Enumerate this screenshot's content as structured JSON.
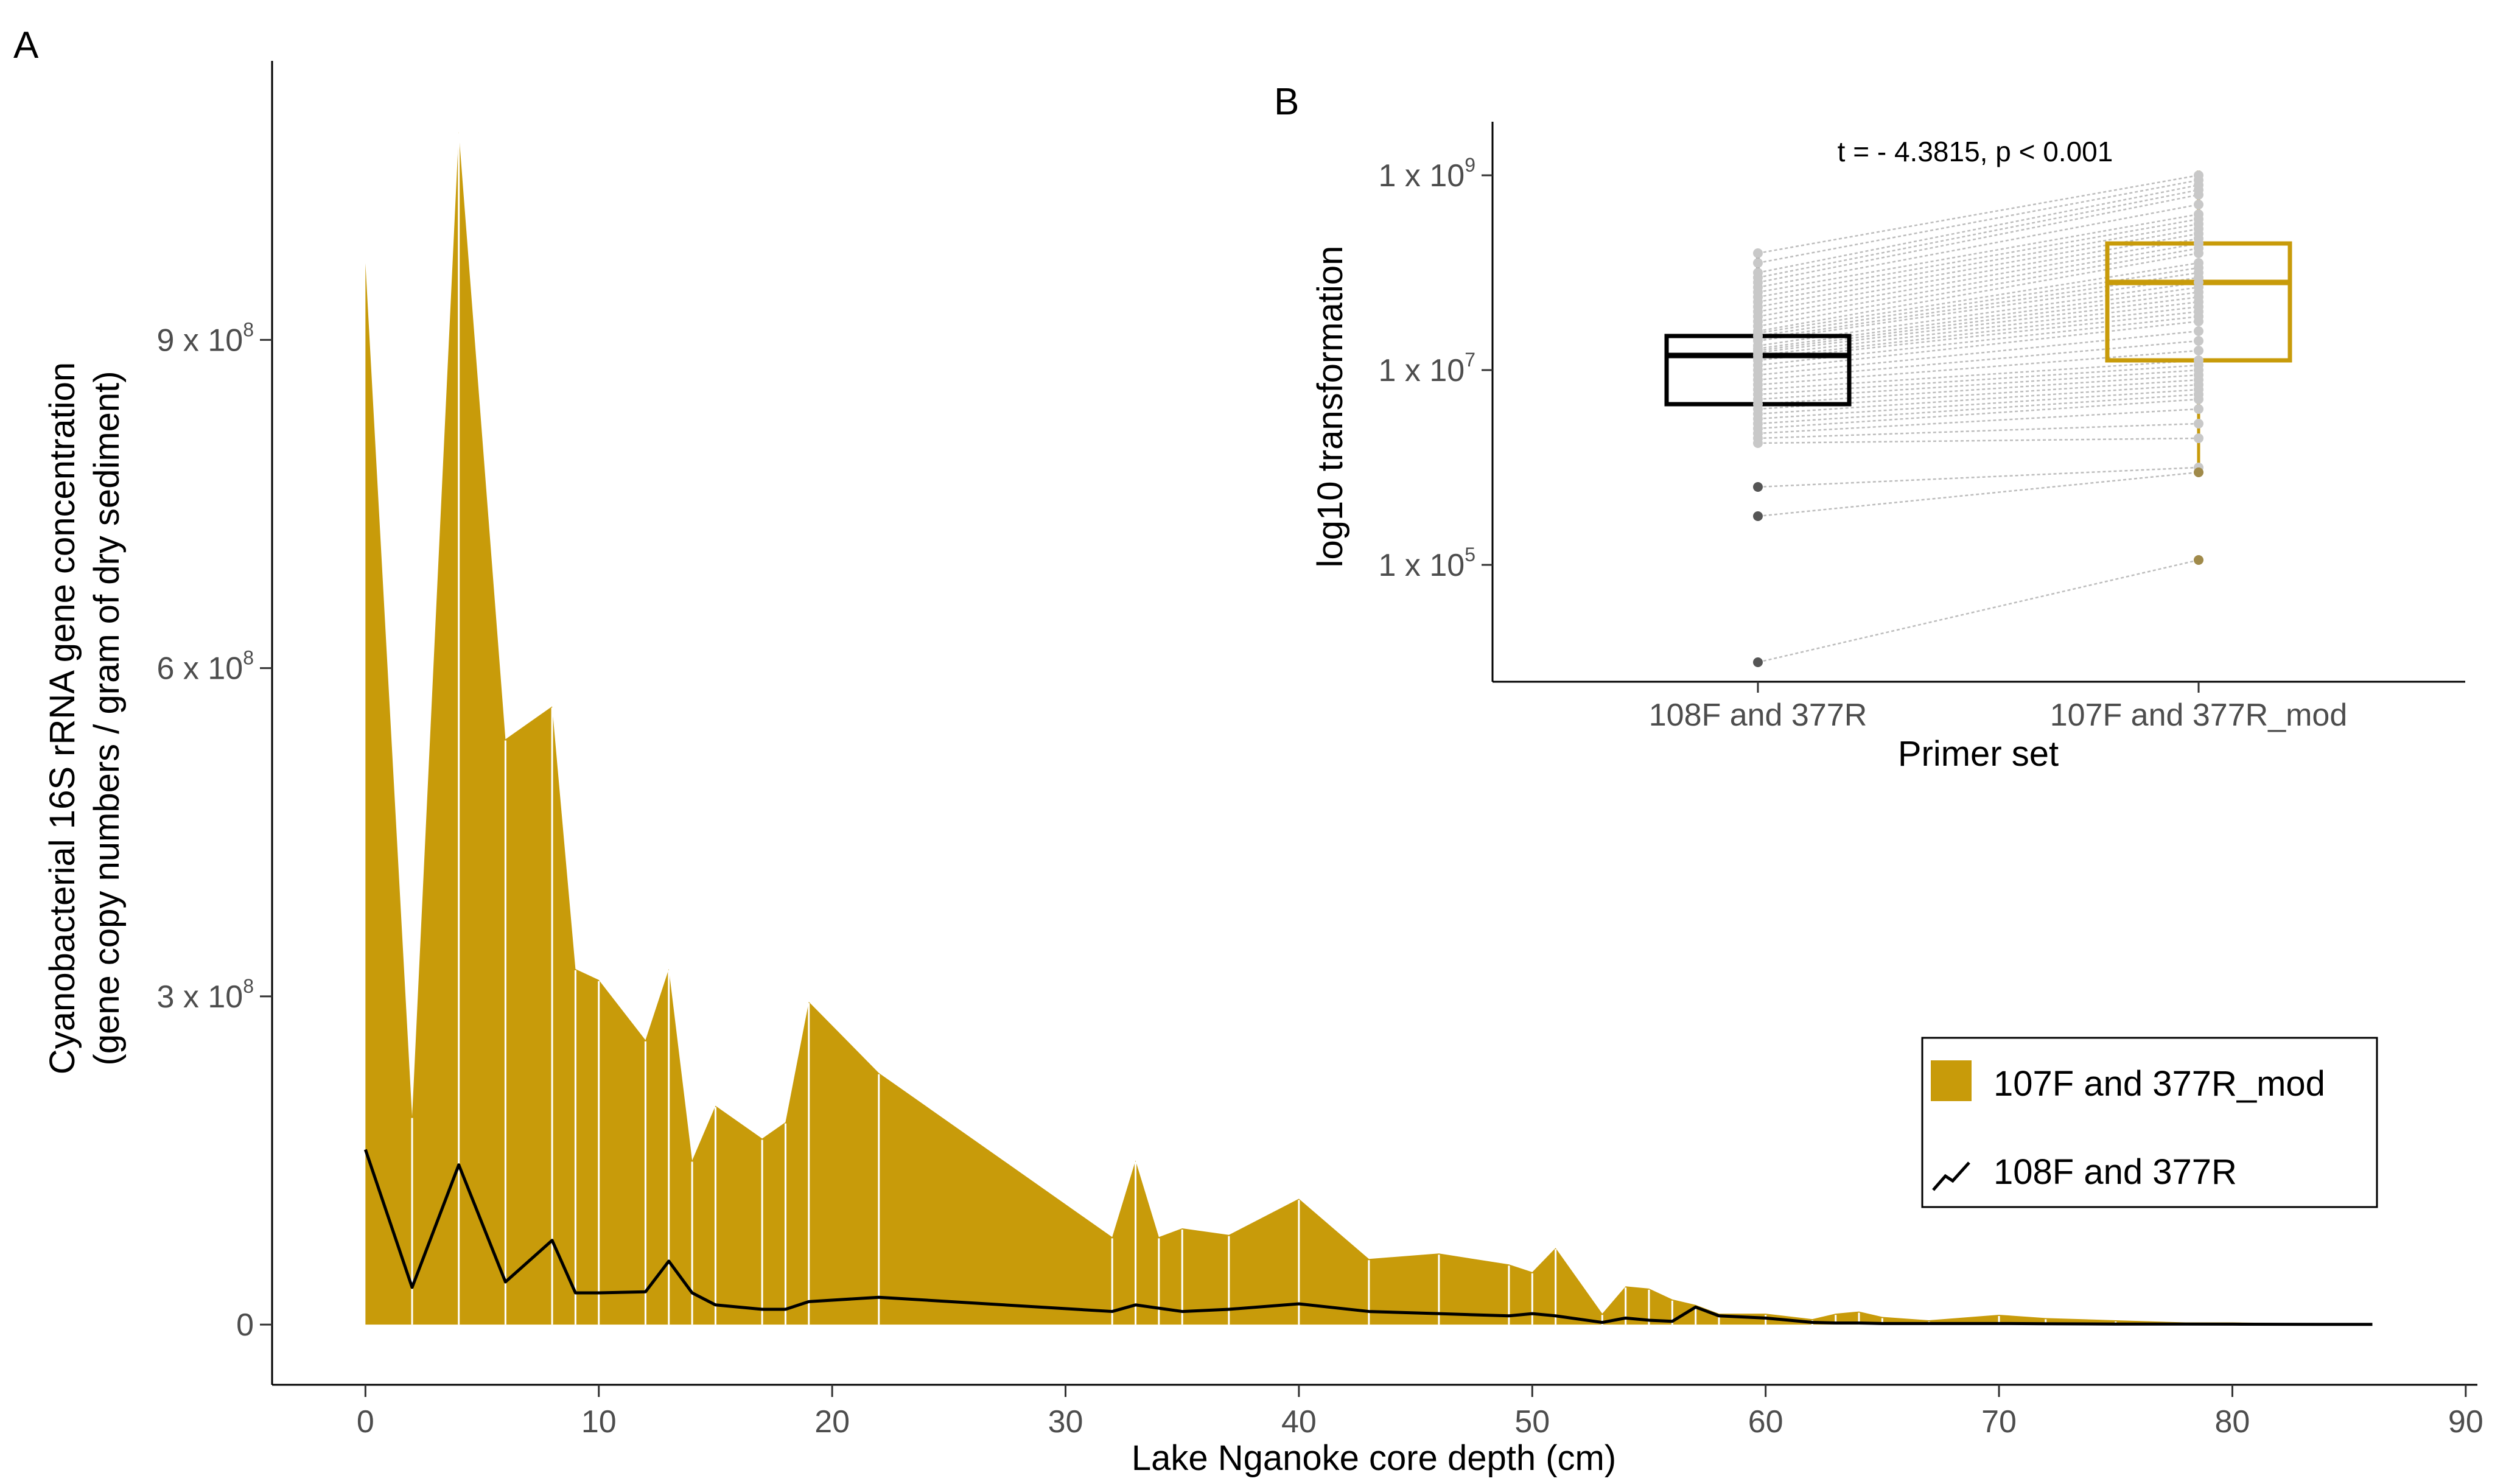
{
  "figure": {
    "panel_a_label": "A",
    "panel_b_label": "B"
  },
  "colors": {
    "gold": "#C89B0A",
    "black": "#000000",
    "tick_text": "#4d4d4d",
    "pair_line": "#bdbdbd",
    "point_gray": "#c8c8c8",
    "point_dark": "#555555"
  },
  "chart_data": [
    {
      "panel": "A",
      "type": "area",
      "title": "",
      "xlabel": "Lake Nganoke core depth (cm)",
      "ylabel_line1": "Cyanobacterial 16S rRNA gene concentration",
      "ylabel_line2": "(gene copy numbers / gram of dry sediment)",
      "xlim": [
        -4,
        90.5
      ],
      "ylim": [
        -55000000.0,
        1155000000.0
      ],
      "x_ticks": [
        0,
        10,
        20,
        30,
        40,
        50,
        60,
        70,
        80,
        90
      ],
      "x_tick_labels": [
        "0",
        "10",
        "20",
        "30",
        "40",
        "50",
        "60",
        "70",
        "80",
        "90"
      ],
      "y_ticks": [
        {
          "value": 0,
          "mant": "0",
          "exp": ""
        },
        {
          "value": 300000000.0,
          "mant": "3 x 10",
          "exp": "8"
        },
        {
          "value": 600000000.0,
          "mant": "6 x 10",
          "exp": "8"
        },
        {
          "value": 900000000.0,
          "mant": "9 x 10",
          "exp": "8"
        }
      ],
      "legend": {
        "position": "right",
        "entries": [
          {
            "label": "107F and 377R_mod",
            "kind": "fill"
          },
          {
            "label": "108F and 377R",
            "kind": "line"
          }
        ]
      },
      "series": [
        {
          "name": "107F and 377R_mod",
          "style": "area",
          "x": [
            0,
            2,
            4,
            6,
            8,
            9,
            10,
            12,
            13,
            14,
            15,
            17,
            18,
            19,
            22,
            32,
            33,
            34,
            35,
            37,
            40,
            43,
            46,
            49,
            50,
            51,
            53,
            54,
            55,
            56,
            57,
            58,
            60,
            62,
            63,
            64,
            65,
            67,
            70,
            72,
            75,
            78,
            80,
            82,
            84,
            86
          ],
          "y": [
            970000000.0,
            190000000.0,
            1090000000.0,
            535000000.0,
            565000000.0,
            325000000.0,
            315000000.0,
            260000000.0,
            325000000.0,
            150000000.0,
            200000000.0,
            170000000.0,
            185000000.0,
            295000000.0,
            230000000.0,
            80000000.0,
            150000000.0,
            80000000.0,
            88000000.0,
            82000000.0,
            115000000.0,
            60000000.0,
            65000000.0,
            55000000.0,
            48000000.0,
            70000000.0,
            10000000.0,
            35000000.0,
            33000000.0,
            23000000.0,
            18000000.0,
            10000000.0,
            10000000.0,
            5000000.0,
            10000000.0,
            12000000.0,
            7000000.0,
            4000000.0,
            9000000.0,
            6000000.0,
            4000000.0,
            2000000.0,
            2000000.0,
            1500000.0,
            1000000.0,
            1000000.0
          ]
        },
        {
          "name": "108F and 377R",
          "style": "line",
          "x": [
            0,
            2,
            4,
            6,
            8,
            9,
            10,
            12,
            13,
            14,
            15,
            17,
            18,
            19,
            22,
            32,
            33,
            34,
            35,
            37,
            40,
            43,
            46,
            49,
            50,
            51,
            53,
            54,
            55,
            56,
            57,
            58,
            60,
            62,
            63,
            64,
            65,
            67,
            70,
            72,
            75,
            78,
            80,
            82,
            84,
            86
          ],
          "y": [
            160000000.0,
            34000000.0,
            146000000.0,
            39000000.0,
            77000000.0,
            29000000.0,
            29000000.0,
            30000000.0,
            58000000.0,
            29000000.0,
            18000000.0,
            14000000.0,
            14000000.0,
            21000000.0,
            25000000.0,
            12000000.0,
            18000000.0,
            15000000.0,
            12000000.0,
            14000000.0,
            19000000.0,
            12000000.0,
            10000000.0,
            8000000.0,
            10000000.0,
            8000000.0,
            2000000.0,
            6000000.0,
            4000000.0,
            3000000.0,
            16000000.0,
            8000000.0,
            6000000.0,
            2000000.0,
            1500000.0,
            1500000.0,
            1000000.0,
            1000000.0,
            1000000.0,
            800000.0,
            500000.0,
            500000.0,
            400000.0,
            300000.0,
            200000.0,
            200000.0
          ]
        }
      ]
    },
    {
      "panel": "B",
      "type": "box",
      "title": "",
      "annotation": "t = - 4.3815, p < 0.001",
      "xlabel": "Primer set",
      "ylabel": "log10 transformation",
      "categories": [
        "108F and 377R",
        "107F and 377R_mod"
      ],
      "ylim_log10": [
        3.8,
        9.55
      ],
      "y_ticks": [
        {
          "log10": 5,
          "mant": "1 x 10",
          "exp": "5"
        },
        {
          "log10": 7,
          "mant": "1 x 10",
          "exp": "7"
        },
        {
          "log10": 9,
          "mant": "1 x 10",
          "exp": "9"
        }
      ],
      "boxes": [
        {
          "name": "108F and 377R",
          "q1_log10": 6.65,
          "median_log10": 7.15,
          "q3_log10": 7.35,
          "whisker_low_log10": 6.25,
          "whisker_high_log10": 8.2
        },
        {
          "name": "107F and 377R_mod",
          "q1_log10": 7.1,
          "median_log10": 7.9,
          "q3_log10": 8.3,
          "whisker_low_log10": 6.0,
          "whisker_high_log10": 9.05
        }
      ],
      "pairs_log10": [
        [
          8.2,
          9.0
        ],
        [
          8.1,
          8.95
        ],
        [
          8.0,
          8.9
        ],
        [
          7.95,
          8.85
        ],
        [
          7.9,
          8.8
        ],
        [
          7.85,
          8.7
        ],
        [
          7.8,
          8.6
        ],
        [
          7.75,
          8.55
        ],
        [
          7.7,
          8.5
        ],
        [
          7.65,
          8.45
        ],
        [
          7.6,
          8.4
        ],
        [
          7.55,
          8.35
        ],
        [
          7.5,
          8.3
        ],
        [
          7.45,
          8.25
        ],
        [
          7.4,
          8.2
        ],
        [
          7.38,
          8.1
        ],
        [
          7.35,
          8.05
        ],
        [
          7.32,
          8.0
        ],
        [
          7.3,
          7.95
        ],
        [
          7.25,
          7.9
        ],
        [
          7.22,
          7.85
        ],
        [
          7.2,
          7.8
        ],
        [
          7.18,
          7.75
        ],
        [
          7.15,
          7.7
        ],
        [
          7.12,
          7.65
        ],
        [
          7.1,
          7.6
        ],
        [
          7.05,
          7.55
        ],
        [
          7.0,
          7.5
        ],
        [
          6.95,
          7.4
        ],
        [
          6.9,
          7.3
        ],
        [
          6.85,
          7.2
        ],
        [
          6.8,
          7.1
        ],
        [
          6.75,
          7.05
        ],
        [
          6.7,
          7.0
        ],
        [
          6.65,
          6.95
        ],
        [
          6.6,
          6.9
        ],
        [
          6.55,
          6.85
        ],
        [
          6.5,
          6.8
        ],
        [
          6.45,
          6.75
        ],
        [
          6.4,
          6.7
        ],
        [
          6.35,
          6.6
        ],
        [
          6.3,
          6.45
        ],
        [
          6.25,
          6.3
        ],
        [
          5.8,
          6.0
        ],
        [
          5.5,
          5.95
        ],
        [
          4.0,
          5.05
        ]
      ]
    }
  ]
}
